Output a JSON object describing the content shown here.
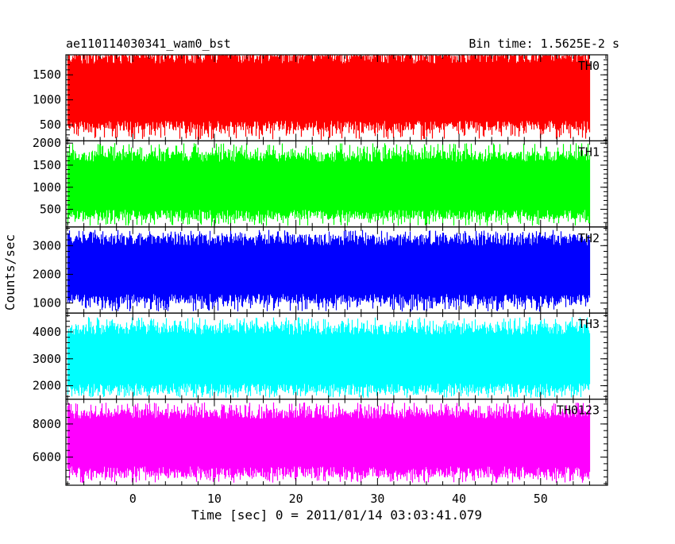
{
  "header": {
    "left_title": "ae110114030341_wam0_bst",
    "right_title": "Bin time: 1.5625E-2 s"
  },
  "chart_data": {
    "type": "line",
    "xlabel": "Time [sec] 0 = 2011/01/14 03:03:41.079",
    "ylabel": "Counts/sec",
    "xlim": [
      -8.2,
      58.2
    ],
    "x_data_range": [
      -8,
      56
    ],
    "x_ticks": [
      0,
      10,
      20,
      30,
      40,
      50
    ],
    "grid": false,
    "panels": [
      {
        "name": "TH0",
        "color": "#ff0000",
        "ylim": [
          180,
          1900
        ],
        "y_ticks": [
          500,
          1000,
          1500
        ],
        "signal": {
          "mean": 1050,
          "band_low": 480,
          "band_high": 1870,
          "spike_min": 200,
          "spike_max": 1900
        }
      },
      {
        "name": "TH1",
        "color": "#00ff00",
        "ylim": [
          100,
          2050
        ],
        "y_ticks": [
          500,
          1000,
          1500,
          2000
        ],
        "signal": {
          "mean": 1000,
          "band_low": 380,
          "band_high": 1700,
          "spike_min": 120,
          "spike_max": 2000
        }
      },
      {
        "name": "TH2",
        "color": "#0000ff",
        "ylim": [
          650,
          3650
        ],
        "y_ticks": [
          1000,
          2000,
          3000
        ],
        "signal": {
          "mean": 2100,
          "band_low": 1150,
          "band_high": 3200,
          "spike_min": 700,
          "spike_max": 3550
        }
      },
      {
        "name": "TH3",
        "color": "#00ffff",
        "ylim": [
          1500,
          4700
        ],
        "y_ticks": [
          2000,
          3000,
          4000
        ],
        "signal": {
          "mean": 2950,
          "band_low": 1900,
          "band_high": 4100,
          "spike_min": 1550,
          "spike_max": 4550
        }
      },
      {
        "name": "TH0123",
        "color": "#ff00ff",
        "ylim": [
          4300,
          9500
        ],
        "y_ticks": [
          6000,
          8000
        ],
        "signal": {
          "mean": 7000,
          "band_low": 5100,
          "band_high": 8600,
          "spike_min": 4450,
          "spike_max": 9300
        }
      }
    ]
  }
}
